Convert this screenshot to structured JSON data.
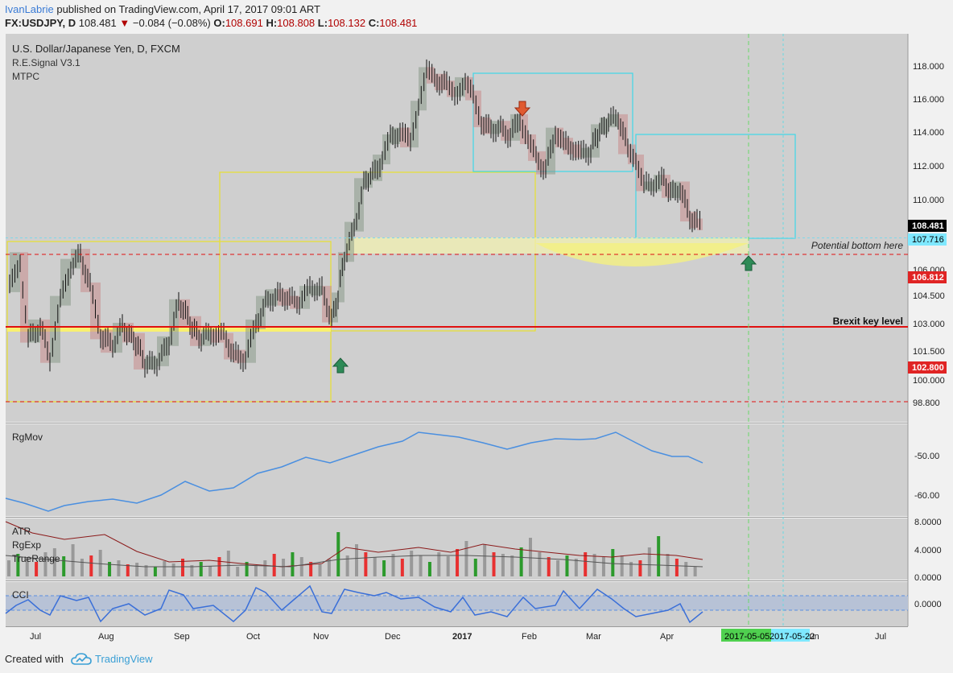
{
  "header": {
    "author": "IvanLabrie",
    "published_text": "published on TradingView.com, April 17, 2017 09:01 ART",
    "symbol": "FX:USDJPY, D",
    "last": "108.481",
    "change": "−0.084 (−0.08%)",
    "o_label": "O:",
    "o_value": "108.691",
    "h_label": "H:",
    "h_value": "108.808",
    "l_label": "L:",
    "l_value": "108.132",
    "c_label": "C:",
    "c_value": "108.481"
  },
  "main_pane": {
    "title": "U.S. Dollar/Japanese Yen, D, FXCM",
    "indicator1": "R.E.Signal V3.1",
    "indicator2": "MTPC",
    "annotation_bottom": "Potential bottom here",
    "annotation_brexit": "Brexit key level",
    "price_ticks": [
      "118.000",
      "116.000",
      "114.000",
      "112.000",
      "110.000",
      "106.000",
      "104.500",
      "103.000",
      "101.500",
      "100.000",
      "98.800"
    ],
    "price_badges": [
      {
        "text": "108.481",
        "bg": "#000000",
        "fg": "#ffffff"
      },
      {
        "text": "107.716",
        "bg": "#7fe8ff",
        "fg": "#000000"
      },
      {
        "text": "106.812",
        "bg": "#e02424",
        "fg": "#ffffff"
      },
      {
        "text": "102.800",
        "bg": "#e02424",
        "fg": "#ffffff"
      }
    ]
  },
  "rgmov_pane": {
    "title": "RgMov",
    "ticks": [
      "-50.00",
      "-60.00"
    ]
  },
  "atr_pane": {
    "title1": "ATR",
    "title2": "RgExp",
    "title3": "TrueRange",
    "ticks": [
      "8.0000",
      "4.0000",
      "0.0000"
    ]
  },
  "cci_pane": {
    "title": "CCI",
    "ticks": [
      "0.0000"
    ]
  },
  "time_axis": {
    "labels": [
      "Jul",
      "Aug",
      "Sep",
      "Oct",
      "Nov",
      "Dec",
      "2017",
      "Feb",
      "Mar",
      "Apr",
      "Jun",
      "Jul"
    ],
    "date_badge1": "2017-05-05",
    "date_badge2": "2017-05-22"
  },
  "footer": {
    "created_with": "Created with",
    "brand": "TradingView"
  },
  "colors": {
    "up": "#000000",
    "candle_up_box": "#8a9b8a",
    "candle_down_box": "#c98c8c",
    "rgmov_line": "#4a8fe0",
    "cci_line": "#3a6fd8",
    "brexit_line": "#e01010",
    "pane_bg": "#cfcfcf"
  },
  "chart_data": {
    "type": "line",
    "title": "U.S. Dollar/Japanese Yen, D, FXCM",
    "x": [
      "Jul",
      "Aug",
      "Sep",
      "Oct",
      "Nov",
      "Dec",
      "2017",
      "Feb",
      "Mar",
      "Apr"
    ],
    "series": [],
    "price_range": [
      98.0,
      119.0
    ],
    "rgmov_range": [
      -65,
      -42
    ],
    "atr_range": [
      0,
      9
    ],
    "cci_range": [
      -2,
      2
    ],
    "key_levels": [
      {
        "label": "Brexit key level",
        "value": 102.8
      },
      {
        "value": 106.812
      },
      {
        "value": 98.8
      },
      {
        "label": "Potential bottom here",
        "value": 107.716
      }
    ],
    "grid": false
  }
}
